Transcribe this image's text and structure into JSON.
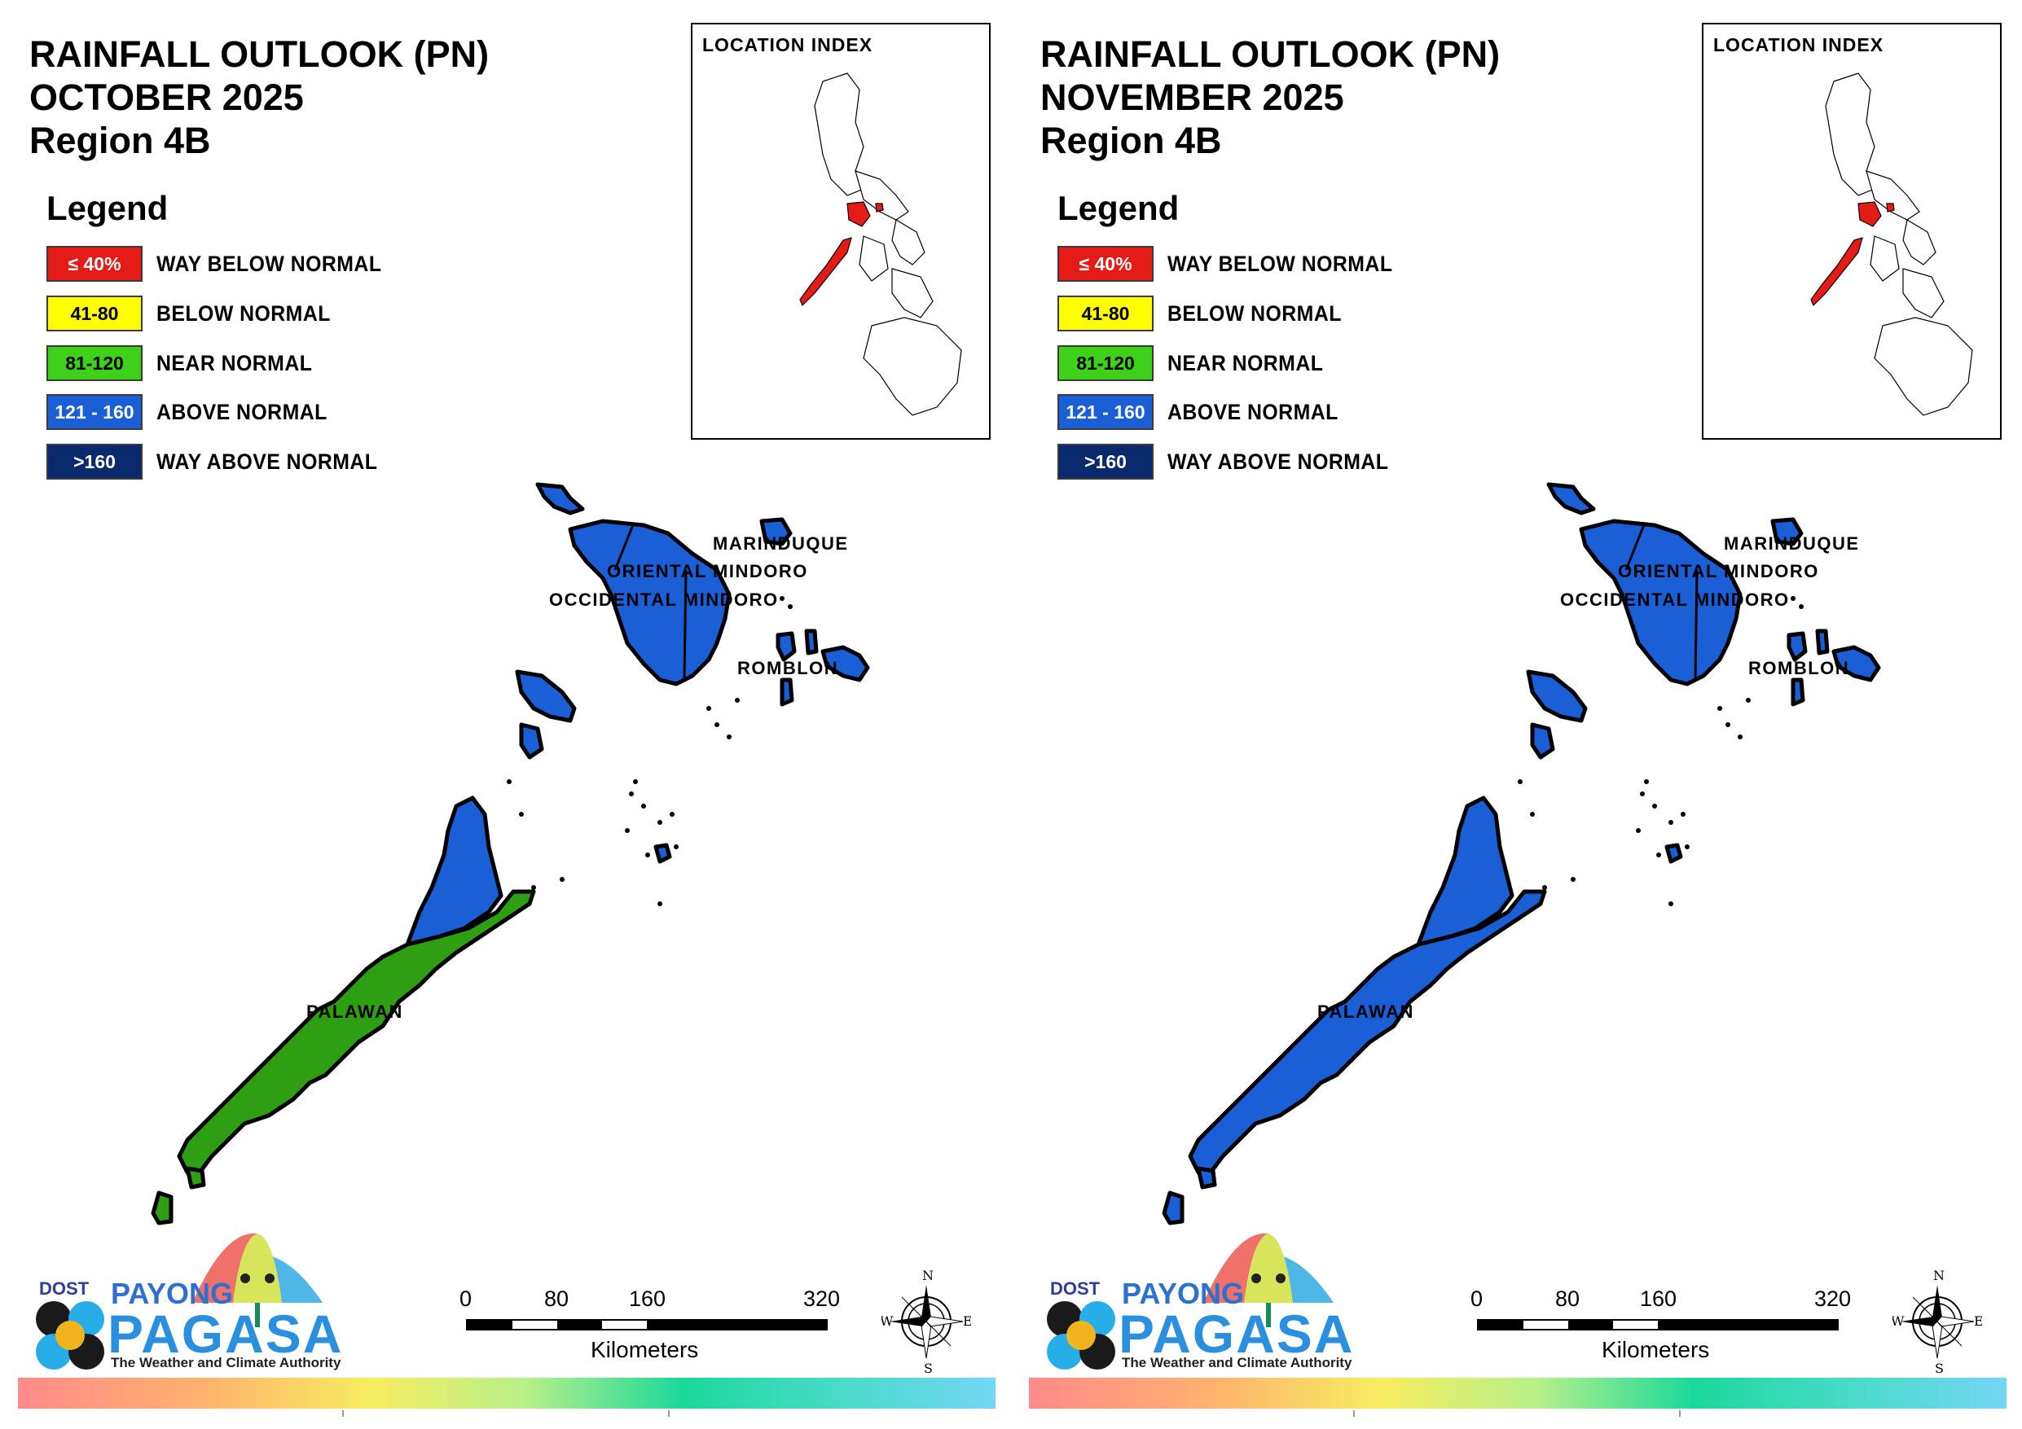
{
  "panels": [
    {
      "title_line1": "RAINFALL OUTLOOK (PN)",
      "title_line2": "OCTOBER 2025",
      "title_line3": "Region 4B",
      "palawan_color": "#2e9e13",
      "palawan_upper_color": "#1a5fd6",
      "calamian_color": "#1a5fd6",
      "map_labels": {
        "marinduque": "MARINDUQUE",
        "oriental_mindoro": "ORIENTAL MINDORO",
        "occidental_mindoro": "OCCIDENTAL MINDORO",
        "romblon": "ROMBLON",
        "palawan": "PALAWAN"
      }
    },
    {
      "title_line1": "RAINFALL OUTLOOK (PN)",
      "title_line2": "NOVEMBER 2025",
      "title_line3": "Region 4B",
      "palawan_color": "#1a5fd6",
      "palawan_upper_color": "#1a5fd6",
      "calamian_color": "#1a5fd6",
      "map_labels": {
        "marinduque": "MARINDUQUE",
        "oriental_mindoro": "ORIENTAL MINDORO",
        "occidental_mindoro": "OCCIDENTAL MINDORO",
        "romblon": "ROMBLON",
        "palawan": "PALAWAN"
      }
    }
  ],
  "legend": {
    "title": "Legend",
    "items": [
      {
        "range": "≤ 40%",
        "label": "WAY BELOW NORMAL",
        "color": "#e41b17",
        "text_color": "#ffffff"
      },
      {
        "range": "41-80",
        "label": "BELOW NORMAL",
        "color": "#ffff00",
        "text_color": "#000000"
      },
      {
        "range": "81-120",
        "label": "NEAR NORMAL",
        "color": "#3fd11a",
        "text_color": "#000000"
      },
      {
        "range": "121 - 160",
        "label": "ABOVE NORMAL",
        "color": "#1a5fd6",
        "text_color": "#ffffff"
      },
      {
        "range": ">160",
        "label": "WAY ABOVE NORMAL",
        "color": "#0a2a6e",
        "text_color": "#ffffff"
      }
    ]
  },
  "location_index": {
    "title": "LOCATION INDEX",
    "highlight_color": "#e41b17"
  },
  "logo": {
    "dost": "DOST",
    "payong": "PAYONG",
    "pagasa": "PAGASA",
    "tagline": "The Weather and Climate Authority"
  },
  "scale": {
    "ticks": [
      "0",
      "80",
      "160",
      "320"
    ],
    "unit": "Kilometers"
  },
  "compass": {
    "n": "N",
    "s": "S",
    "e": "E",
    "w": "W"
  }
}
